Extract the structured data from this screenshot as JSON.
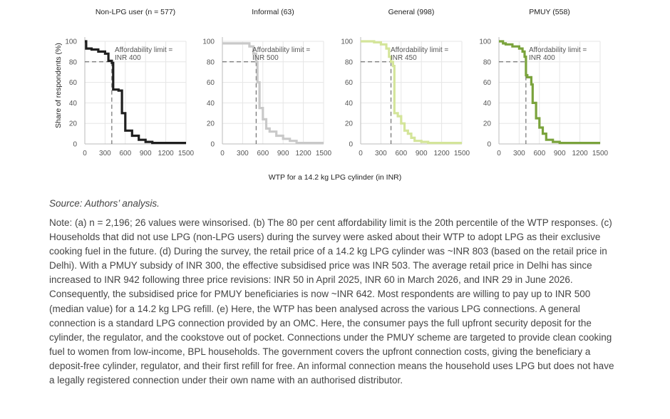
{
  "figure": {
    "ylabel": "Share of respondents (%)",
    "xlabel": "WTP for a 14.2 kg LPG cylinder (in INR)",
    "source": "Source: Authors’ analysis.",
    "note": "Note: (a) n = 2,196; 26 values were winsorised. (b) The 80 per cent affordability limit is the 20th percentile of the WTP responses. (c) Households that did not use LPG (non-LPG users) during the survey were asked about their WTP to adopt LPG as their exclusive cooking fuel in the future. (d) During the survey, the retail price of a 14.2 kg LPG cylinder was ~INR 803 (based on the retail price in Delhi). With a PMUY subsidy of INR 300, the effective subsidised price was INR 503. The average retail price in Delhi has since increased to INR 942 following three price revisions: INR 50 in April 2025, INR 60 in March 2026, and INR 29 in June 2026. Consequently, the subsidised price for PMUY beneficiaries is now ~INR 642. Most respondents are willing to pay up to INR 500 (median value) for a 14.2 kg LPG refill. (e) Here, the WTP has been analysed across the various LPG connections. A general connection is a standard LPG connection provided by an OMC. Here, the consumer pays the full upfront security deposit for the cylinder, the regulator, and the cookstove out of pocket. Connections under the PMUY scheme are targeted to provide clean cooking fuel to women from low-income, BPL households. The government covers the upfront connection costs, giving the beneficiary a deposit-free cylinder, regulator, and their first refill for free. An informal connection means the household uses LPG but does not have a legally registered connection under their own name with an authorised distributor."
  },
  "chart_data": [
    {
      "type": "line",
      "title": "Non-LPG user (n = 577)",
      "color": "#1f1f1f",
      "xlim": [
        0,
        1500
      ],
      "ylim": [
        0,
        100
      ],
      "x_ticks": [
        "0",
        "300",
        "600",
        "900",
        "1200",
        "1500"
      ],
      "y_ticks": [
        "0",
        "20",
        "40",
        "60",
        "80",
        "100"
      ],
      "annotation": [
        "Affordability limit =",
        "INR 400"
      ],
      "limit_x": 400,
      "limit_y": 80,
      "x": [
        0,
        20,
        20,
        100,
        100,
        200,
        200,
        300,
        300,
        350,
        350,
        400,
        400,
        420,
        420,
        500,
        500,
        550,
        550,
        600,
        600,
        700,
        700,
        800,
        800,
        900,
        900,
        1000,
        1000,
        1500
      ],
      "y": [
        100,
        100,
        93,
        93,
        92,
        92,
        90,
        90,
        88,
        88,
        81,
        81,
        79,
        79,
        53,
        53,
        52,
        52,
        30,
        30,
        13,
        13,
        8,
        8,
        4,
        4,
        2,
        2,
        1,
        1
      ]
    },
    {
      "type": "line",
      "title": "Informal (63)",
      "color": "#c9c9c9",
      "xlim": [
        0,
        1500
      ],
      "ylim": [
        0,
        100
      ],
      "x_ticks": [
        "0",
        "300",
        "600",
        "900",
        "1200",
        "1500"
      ],
      "y_ticks": [
        "0",
        "20",
        "40",
        "60",
        "80",
        "100"
      ],
      "annotation": [
        "Affordability limit =",
        "INR 500"
      ],
      "limit_x": 500,
      "limit_y": 80,
      "x": [
        0,
        400,
        400,
        460,
        460,
        500,
        500,
        520,
        520,
        550,
        550,
        600,
        600,
        650,
        650,
        700,
        700,
        800,
        800,
        900,
        900,
        1000,
        1000,
        1100,
        1100,
        1500
      ],
      "y": [
        98,
        98,
        95,
        95,
        88,
        88,
        80,
        80,
        60,
        60,
        35,
        35,
        24,
        24,
        15,
        15,
        12,
        12,
        8,
        8,
        5,
        5,
        3,
        3,
        1,
        1
      ]
    },
    {
      "type": "line",
      "title": "General (998)",
      "color": "#d4e59a",
      "xlim": [
        0,
        1500
      ],
      "ylim": [
        0,
        100
      ],
      "x_ticks": [
        "0",
        "300",
        "600",
        "900",
        "1200",
        "1500"
      ],
      "y_ticks": [
        "0",
        "20",
        "40",
        "60",
        "80",
        "100"
      ],
      "annotation": [
        "Affordability limit =",
        "INR 450"
      ],
      "limit_x": 450,
      "limit_y": 80,
      "x": [
        0,
        200,
        200,
        300,
        300,
        380,
        380,
        420,
        420,
        450,
        450,
        480,
        480,
        500,
        500,
        550,
        550,
        600,
        600,
        650,
        650,
        700,
        700,
        750,
        750,
        800,
        800,
        900,
        900,
        1000,
        1000,
        1500
      ],
      "y": [
        100,
        100,
        99,
        99,
        97,
        97,
        93,
        93,
        85,
        85,
        80,
        80,
        76,
        76,
        30,
        30,
        27,
        27,
        20,
        20,
        13,
        13,
        10,
        10,
        6,
        6,
        3,
        3,
        2,
        2,
        1,
        1
      ]
    },
    {
      "type": "line",
      "title": "PMUY (558)",
      "color": "#7aa33c",
      "xlim": [
        0,
        1500
      ],
      "ylim": [
        0,
        100
      ],
      "x_ticks": [
        "0",
        "300",
        "600",
        "900",
        "1200",
        "1500"
      ],
      "y_ticks": [
        "0",
        "20",
        "40",
        "60",
        "80",
        "100"
      ],
      "annotation": [
        "Affordability limit =",
        "INR 400"
      ],
      "limit_x": 400,
      "limit_y": 80,
      "x": [
        0,
        60,
        60,
        100,
        100,
        200,
        200,
        300,
        300,
        350,
        350,
        380,
        380,
        400,
        400,
        420,
        420,
        480,
        480,
        500,
        500,
        550,
        550,
        600,
        600,
        650,
        650,
        700,
        700,
        800,
        800,
        900,
        900,
        1500
      ],
      "y": [
        100,
        100,
        98,
        98,
        97,
        97,
        95,
        95,
        93,
        93,
        90,
        90,
        85,
        85,
        67,
        67,
        65,
        65,
        58,
        58,
        40,
        40,
        25,
        25,
        16,
        16,
        10,
        10,
        4,
        4,
        2,
        2,
        1,
        1
      ]
    }
  ]
}
